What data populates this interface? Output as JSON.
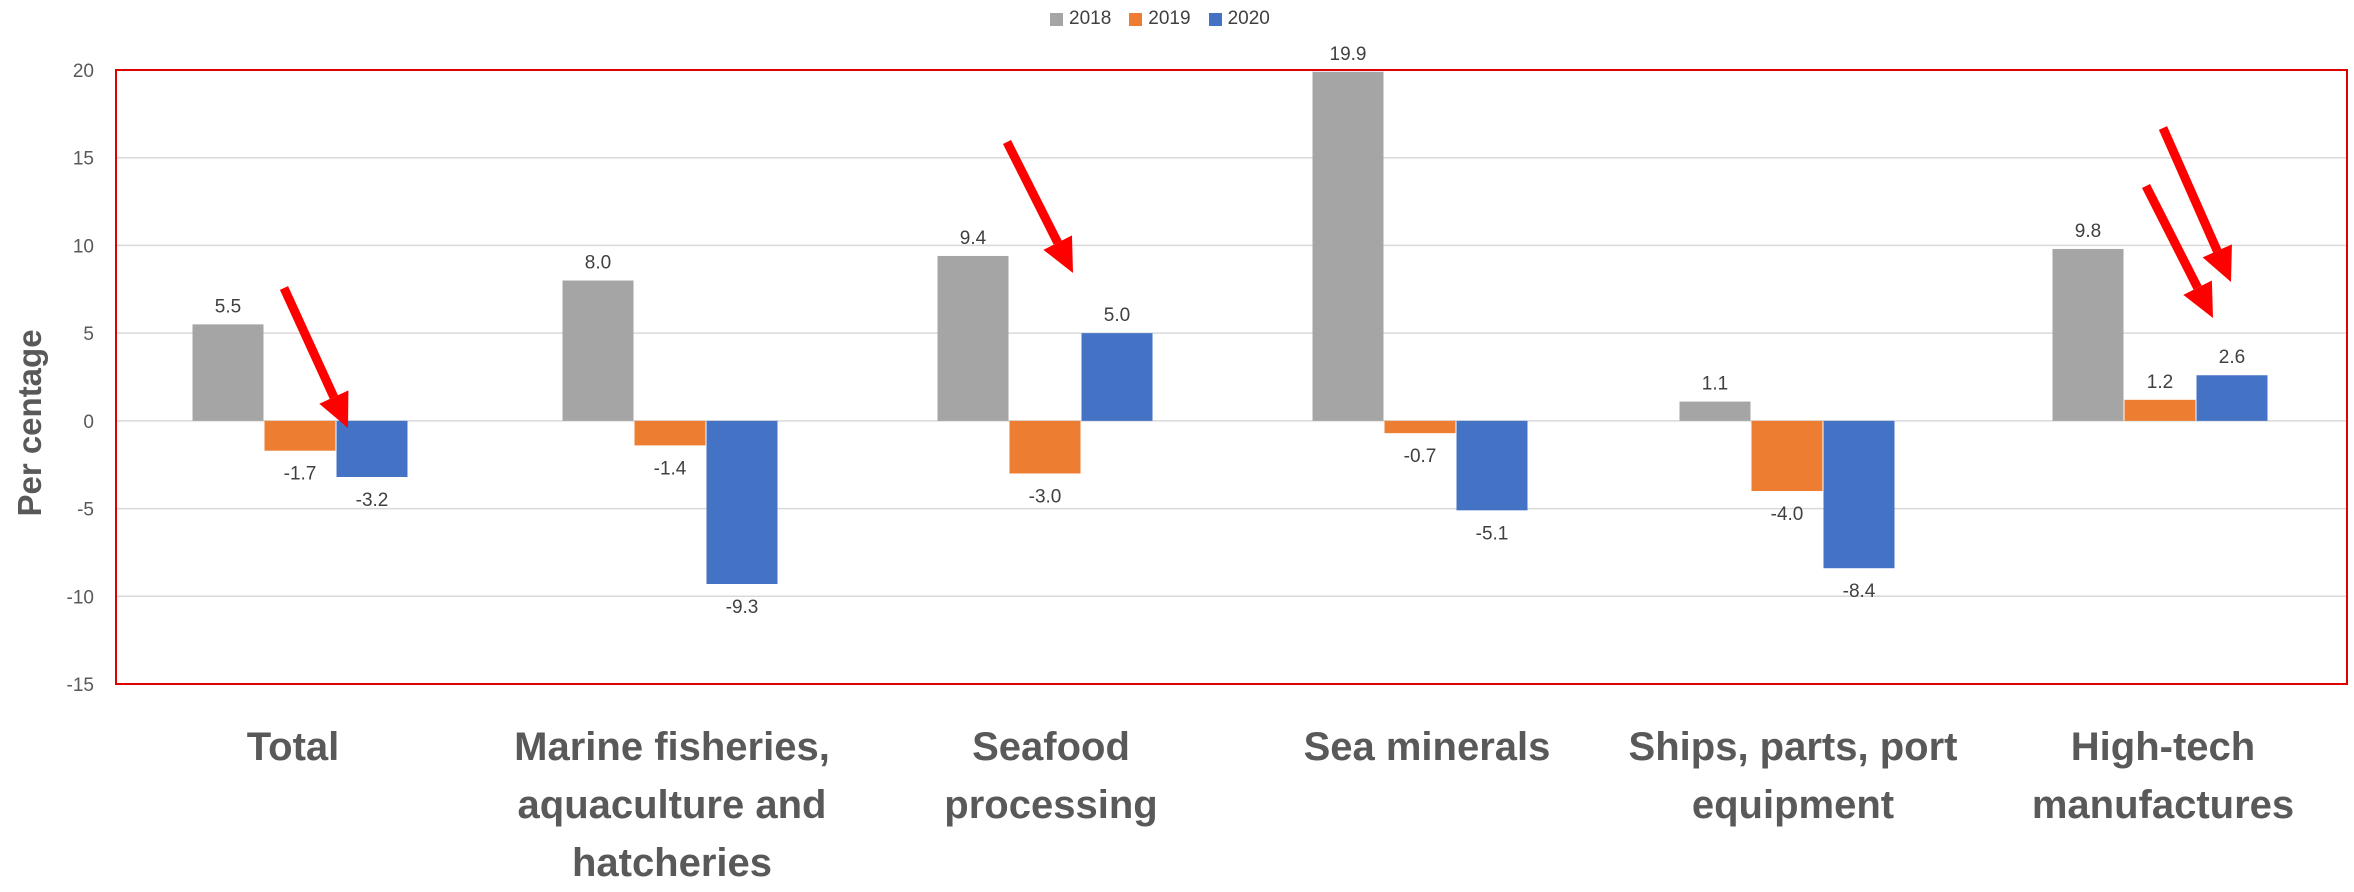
{
  "chart_data": {
    "type": "bar",
    "title": "",
    "xlabel": "",
    "ylabel": "Per centage",
    "ylim": [
      -15,
      20
    ],
    "yticks": [
      20,
      15,
      10,
      5,
      0,
      -5,
      -10,
      -15
    ],
    "grid": true,
    "legend_position": "top-center",
    "categories": [
      "Total",
      "Marine fisheries,\naquaculture and\nhatcheries",
      "Seafood\nprocessing",
      "Sea minerals",
      "Ships, parts, port\nequipment",
      "High-tech\nmanufactures"
    ],
    "series": [
      {
        "name": "2018",
        "color": "#A5A5A5",
        "values": [
          5.5,
          8.0,
          9.4,
          19.9,
          1.1,
          9.8
        ]
      },
      {
        "name": "2019",
        "color": "#ED7D31",
        "values": [
          -1.7,
          -1.4,
          -3.0,
          -0.7,
          -4.0,
          1.2
        ]
      },
      {
        "name": "2020",
        "color": "#4472C4",
        "values": [
          -3.2,
          -9.3,
          5.0,
          -5.1,
          -8.4,
          2.6
        ]
      }
    ],
    "data_labels": [
      [
        "5.5",
        "8.0",
        "9.4",
        "19.9",
        "1.1",
        "9.8"
      ],
      [
        "-1.7",
        "-1.4",
        "-3.0",
        "-0.7",
        "-4.0",
        "1.2"
      ],
      [
        "-3.2",
        "-9.3",
        "5.0",
        "-5.1",
        "-8.4",
        "2.6"
      ]
    ],
    "annotations": {
      "plot_border_color": "#E00000",
      "arrow_color": "#FF0000",
      "arrows_point_to": [
        "Total 2020",
        "Seafood processing 2020",
        "High-tech manufactures 2020",
        "High-tech manufactures 2020"
      ]
    }
  }
}
